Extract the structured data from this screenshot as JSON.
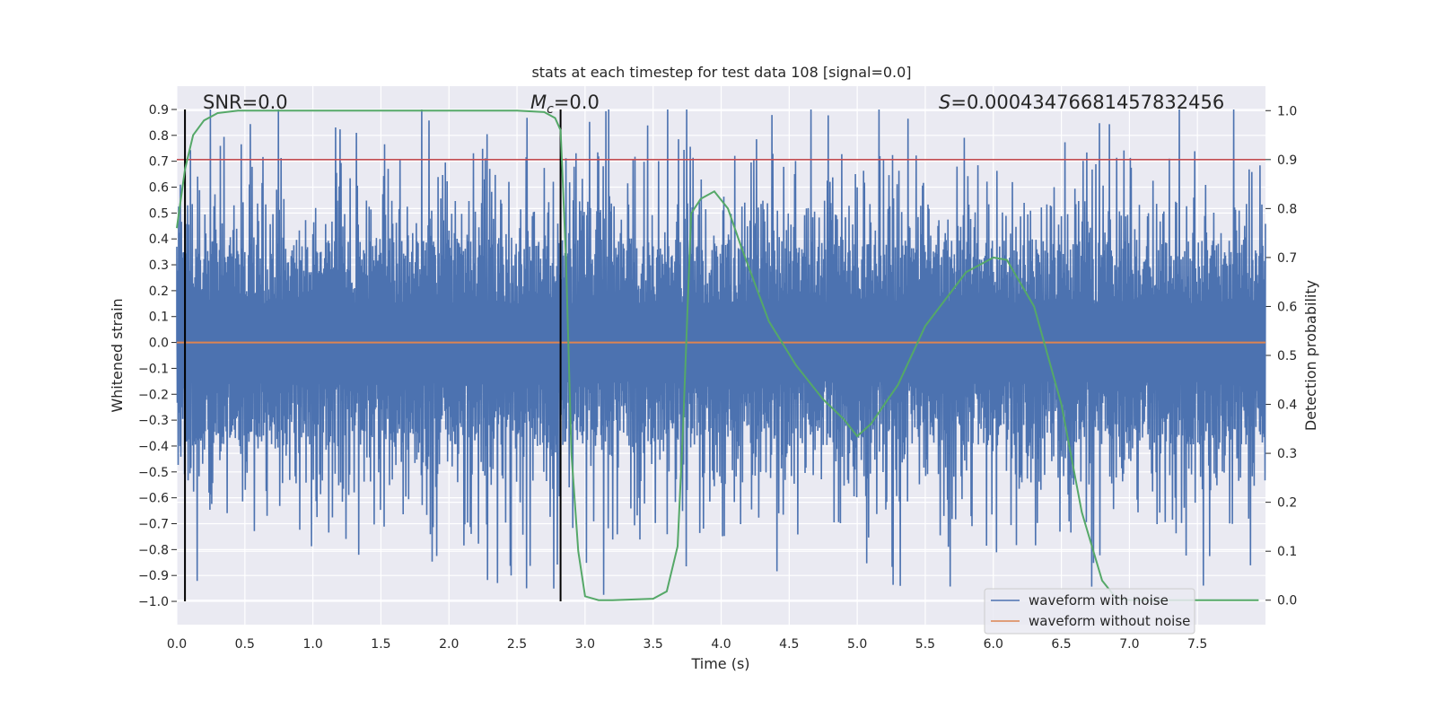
{
  "chart_data": {
    "type": "line",
    "title": "stats at each timestep for test data 108 [signal=0.0]",
    "xlabel": "Time (s)",
    "ylabel": "Whitened strain",
    "y2label": "Detection probability",
    "xlim": [
      0.0,
      8.0
    ],
    "ylim": [
      -1.09,
      0.99
    ],
    "y2lim": [
      -0.05,
      1.05
    ],
    "xticks": [
      0.0,
      0.5,
      1.0,
      1.5,
      2.0,
      2.5,
      3.0,
      3.5,
      4.0,
      4.5,
      5.0,
      5.5,
      6.0,
      6.5,
      7.0,
      7.5
    ],
    "yticks": [
      0.9,
      0.8,
      0.7,
      0.6,
      0.5,
      0.4,
      0.3,
      0.2,
      0.1,
      0.0,
      -0.1,
      -0.2,
      -0.3,
      -0.4,
      -0.5,
      -0.6,
      -0.7,
      -0.8,
      -0.9,
      -1.0
    ],
    "y2ticks": [
      1.0,
      0.9,
      0.8,
      0.7,
      0.6,
      0.5,
      0.4,
      0.3,
      0.2,
      0.1,
      0.0
    ],
    "grid": true,
    "annotations": {
      "snr": "SNR=0.0",
      "mc_symbol": "M",
      "mc_sub": "c",
      "mc_value": "=0.0",
      "s_symbol": "S",
      "s_value": "=0.00043476681457832456"
    },
    "reference_lines": {
      "threshold_y2": 0.9,
      "vertical_x": [
        0.06,
        2.82
      ]
    },
    "legend": {
      "position": "lower-right",
      "entries": [
        "waveform with noise",
        "waveform without noise"
      ]
    },
    "colors": {
      "noise": "#4c72b0",
      "clean": "#dd8452",
      "probability": "#55a868",
      "threshold": "#c44e52",
      "markers": "#000000",
      "plot_bg": "#eaeaf2",
      "grid": "#ffffff"
    },
    "series": [
      {
        "name": "waveform with noise",
        "axis": "left",
        "description_values": "dense white noise, amplitude roughly within -1.0 to 0.9"
      },
      {
        "name": "waveform without noise",
        "axis": "left",
        "x": [
          0.0,
          8.0
        ],
        "values": [
          0.0,
          0.0
        ]
      },
      {
        "name": "detection probability",
        "axis": "right",
        "x": [
          0.0,
          0.06,
          0.12,
          0.2,
          0.3,
          0.45,
          0.8,
          1.5,
          2.0,
          2.5,
          2.7,
          2.78,
          2.82,
          2.86,
          2.9,
          2.95,
          3.0,
          3.1,
          3.2,
          3.5,
          3.6,
          3.68,
          3.72,
          3.78,
          3.85,
          3.95,
          4.05,
          4.15,
          4.35,
          4.55,
          4.75,
          4.9,
          5.0,
          5.1,
          5.3,
          5.5,
          5.8,
          6.0,
          6.1,
          6.3,
          6.5,
          6.65,
          6.8,
          6.9,
          7.0,
          7.5,
          7.95
        ],
        "values": [
          0.76,
          0.88,
          0.95,
          0.98,
          0.995,
          1.0,
          1.0,
          1.0,
          1.0,
          1.0,
          0.997,
          0.985,
          0.96,
          0.7,
          0.3,
          0.1,
          0.008,
          0.0,
          0.0,
          0.003,
          0.018,
          0.11,
          0.35,
          0.79,
          0.82,
          0.835,
          0.8,
          0.72,
          0.57,
          0.48,
          0.41,
          0.37,
          0.335,
          0.36,
          0.44,
          0.56,
          0.67,
          0.7,
          0.695,
          0.6,
          0.4,
          0.18,
          0.04,
          0.005,
          0.0,
          0.0,
          0.0
        ]
      }
    ]
  }
}
